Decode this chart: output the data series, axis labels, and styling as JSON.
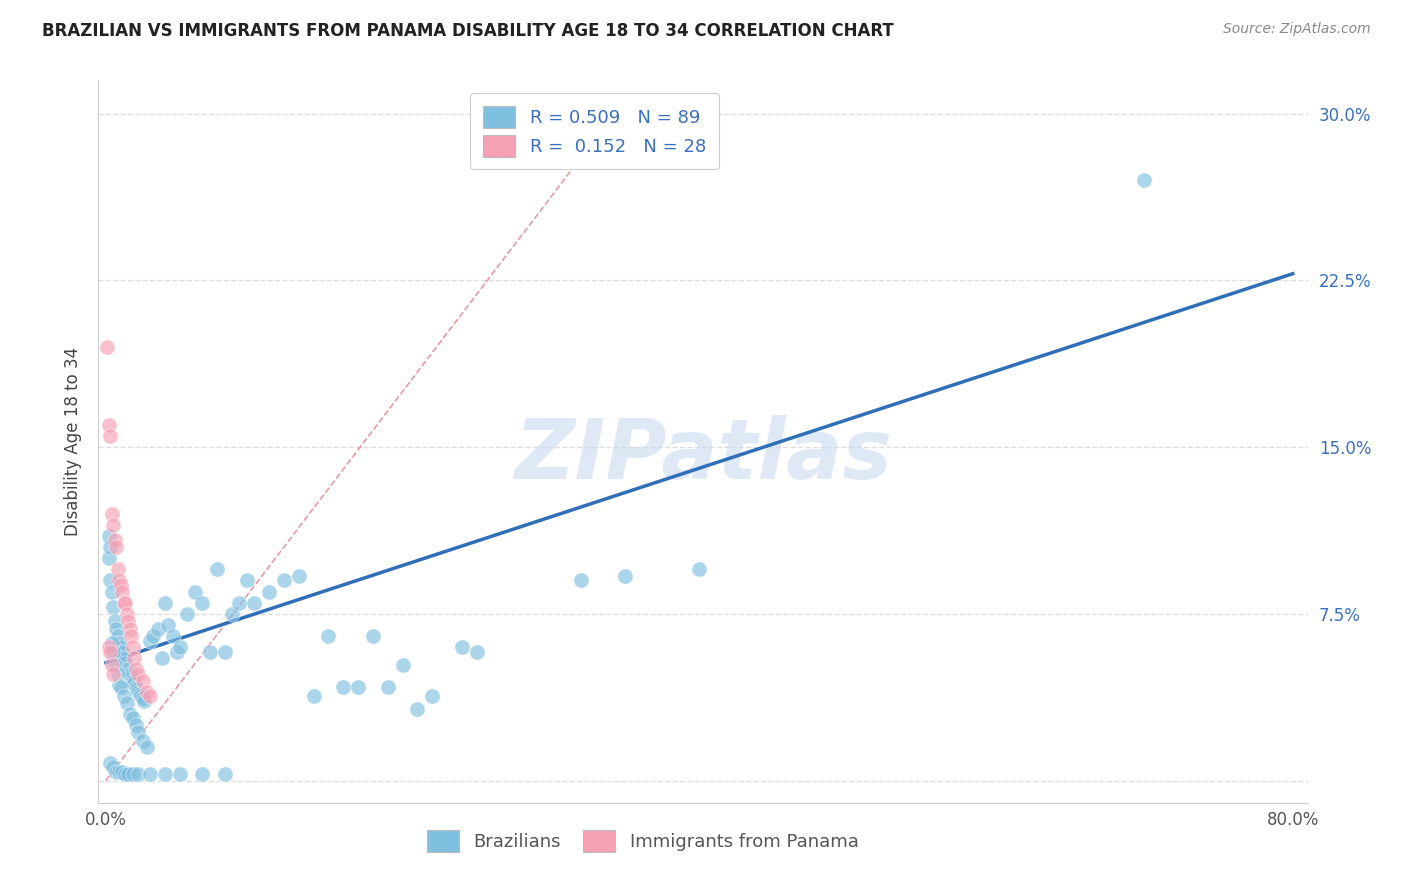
{
  "title": "BRAZILIAN VS IMMIGRANTS FROM PANAMA DISABILITY AGE 18 TO 34 CORRELATION CHART",
  "source": "Source: ZipAtlas.com",
  "ylabel": "Disability Age 18 to 34",
  "xlim": [
    -0.005,
    0.81
  ],
  "ylim": [
    -0.01,
    0.315
  ],
  "xtick_positions": [
    0.0,
    0.1,
    0.2,
    0.3,
    0.4,
    0.5,
    0.6,
    0.7,
    0.8
  ],
  "xticklabels": [
    "0.0%",
    "",
    "",
    "",
    "",
    "",
    "",
    "",
    "80.0%"
  ],
  "ytick_positions": [
    0.0,
    0.075,
    0.15,
    0.225,
    0.3
  ],
  "yticklabels_right": [
    "",
    "7.5%",
    "15.0%",
    "22.5%",
    "30.0%"
  ],
  "watermark": "ZIPatlas",
  "color_blue": "#7fbfdf",
  "color_pink": "#f5a0b5",
  "color_line_blue": "#2f6fba",
  "color_line_pink": "#e08090",
  "color_grid": "#dddddd",
  "regression_blue_x0": 0.0,
  "regression_blue_y0": 0.053,
  "regression_blue_x1": 0.8,
  "regression_blue_y1": 0.228,
  "regression_pink_x0": 0.0,
  "regression_pink_y0": 0.0,
  "regression_pink_x1": 0.32,
  "regression_pink_y1": 0.28,
  "brazilians_x": [
    0.002,
    0.003,
    0.004,
    0.005,
    0.006,
    0.007,
    0.008,
    0.009,
    0.01,
    0.011,
    0.012,
    0.013,
    0.015,
    0.016,
    0.017,
    0.018,
    0.019,
    0.02,
    0.021,
    0.022,
    0.023,
    0.024,
    0.025,
    0.026,
    0.002,
    0.003,
    0.004,
    0.005,
    0.006,
    0.008,
    0.009,
    0.01,
    0.012,
    0.014,
    0.016,
    0.018,
    0.02,
    0.022,
    0.025,
    0.028,
    0.03,
    0.032,
    0.035,
    0.038,
    0.04,
    0.042,
    0.045,
    0.048,
    0.05,
    0.055,
    0.06,
    0.065,
    0.07,
    0.075,
    0.08,
    0.085,
    0.09,
    0.095,
    0.1,
    0.11,
    0.12,
    0.13,
    0.14,
    0.15,
    0.16,
    0.17,
    0.18,
    0.19,
    0.2,
    0.21,
    0.22,
    0.24,
    0.25,
    0.003,
    0.005,
    0.007,
    0.009,
    0.011,
    0.013,
    0.015,
    0.018,
    0.022,
    0.03,
    0.04,
    0.05,
    0.065,
    0.08,
    0.7,
    0.32,
    0.35,
    0.4
  ],
  "brazilians_y": [
    0.1,
    0.09,
    0.085,
    0.078,
    0.072,
    0.068,
    0.065,
    0.062,
    0.06,
    0.058,
    0.055,
    0.053,
    0.05,
    0.048,
    0.047,
    0.045,
    0.044,
    0.042,
    0.041,
    0.04,
    0.039,
    0.038,
    0.037,
    0.036,
    0.11,
    0.105,
    0.062,
    0.058,
    0.052,
    0.048,
    0.043,
    0.042,
    0.038,
    0.035,
    0.03,
    0.028,
    0.025,
    0.022,
    0.018,
    0.015,
    0.063,
    0.065,
    0.068,
    0.055,
    0.08,
    0.07,
    0.065,
    0.058,
    0.06,
    0.075,
    0.085,
    0.08,
    0.058,
    0.095,
    0.058,
    0.075,
    0.08,
    0.09,
    0.08,
    0.085,
    0.09,
    0.092,
    0.038,
    0.065,
    0.042,
    0.042,
    0.065,
    0.042,
    0.052,
    0.032,
    0.038,
    0.06,
    0.058,
    0.008,
    0.006,
    0.004,
    0.004,
    0.004,
    0.003,
    0.003,
    0.003,
    0.003,
    0.003,
    0.003,
    0.003,
    0.003,
    0.003,
    0.27,
    0.09,
    0.092,
    0.095
  ],
  "panama_x": [
    0.001,
    0.002,
    0.003,
    0.004,
    0.005,
    0.006,
    0.007,
    0.008,
    0.009,
    0.01,
    0.011,
    0.012,
    0.013,
    0.014,
    0.015,
    0.016,
    0.017,
    0.018,
    0.019,
    0.02,
    0.022,
    0.025,
    0.028,
    0.03,
    0.002,
    0.003,
    0.004,
    0.005
  ],
  "panama_y": [
    0.195,
    0.16,
    0.155,
    0.12,
    0.115,
    0.108,
    0.105,
    0.095,
    0.09,
    0.088,
    0.085,
    0.08,
    0.08,
    0.075,
    0.072,
    0.068,
    0.065,
    0.06,
    0.055,
    0.05,
    0.048,
    0.045,
    0.04,
    0.038,
    0.06,
    0.058,
    0.052,
    0.048
  ],
  "background_color": "#ffffff"
}
